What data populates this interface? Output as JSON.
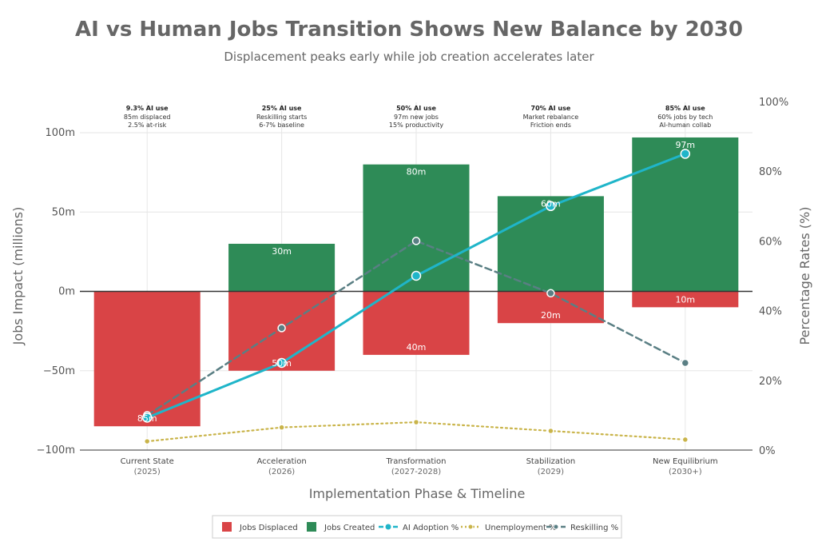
{
  "chart_data": {
    "type": "bar",
    "title": "AI vs Human Jobs Transition Shows New Balance by 2030",
    "subtitle": "Displacement peaks early while job creation accelerates later",
    "xlabel": "Implementation Phase & Timeline",
    "ylabel": "Jobs Impact (millions)",
    "y2label": "Percentage Rates (%)",
    "ylim": [
      -100,
      100
    ],
    "y2lim": [
      0,
      100
    ],
    "yticks": [
      "−100m",
      "−50m",
      "0m",
      "50m",
      "100m"
    ],
    "y2ticks": [
      "0%",
      "20%",
      "40%",
      "60%",
      "80%",
      "100%"
    ],
    "categories": [
      {
        "name": "Current State",
        "period": "(2025)"
      },
      {
        "name": "Acceleration",
        "period": "(2026)"
      },
      {
        "name": "Transformation",
        "period": "(2027-2028)"
      },
      {
        "name": "Stabilization",
        "period": "(2029)"
      },
      {
        "name": "New Equilibrium",
        "period": "(2030+)"
      }
    ],
    "annotations": [
      {
        "head": "9.3% AI use",
        "lines": [
          "85m displaced",
          "2.5% at-risk"
        ]
      },
      {
        "head": "25% AI use",
        "lines": [
          "Reskilling starts",
          "6-7% baseline"
        ]
      },
      {
        "head": "50% AI use",
        "lines": [
          "97m new jobs",
          "15% productivity"
        ]
      },
      {
        "head": "70% AI use",
        "lines": [
          "Market rebalance",
          "Friction ends"
        ]
      },
      {
        "head": "85% AI use",
        "lines": [
          "60% jobs by tech",
          "AI-human collab"
        ]
      }
    ],
    "series": [
      {
        "name": "Jobs Displaced",
        "kind": "bar",
        "color": "#d94446",
        "values": [
          -85,
          -50,
          -40,
          -20,
          -10
        ],
        "labels": [
          "85m",
          "50m",
          "40m",
          "20m",
          "10m"
        ]
      },
      {
        "name": "Jobs Created",
        "kind": "bar",
        "color": "#2e8b57",
        "values": [
          0,
          30,
          80,
          60,
          97
        ],
        "labels": [
          "",
          "30m",
          "80m",
          "60m",
          "97m"
        ]
      },
      {
        "name": "AI Adoption %",
        "kind": "line",
        "axis": "right",
        "color": "#1fb5c9",
        "values": [
          9.3,
          25,
          50,
          70,
          85
        ]
      },
      {
        "name": "Unemployment %",
        "kind": "line",
        "axis": "right",
        "color": "#c9b44a",
        "values": [
          2.5,
          6.5,
          8,
          5.5,
          3
        ]
      },
      {
        "name": "Reskilling %",
        "kind": "line",
        "axis": "right",
        "color": "#5a7f84",
        "values": [
          10,
          35,
          60,
          45,
          25
        ]
      }
    ],
    "grid": true,
    "legend_position": "bottom"
  }
}
